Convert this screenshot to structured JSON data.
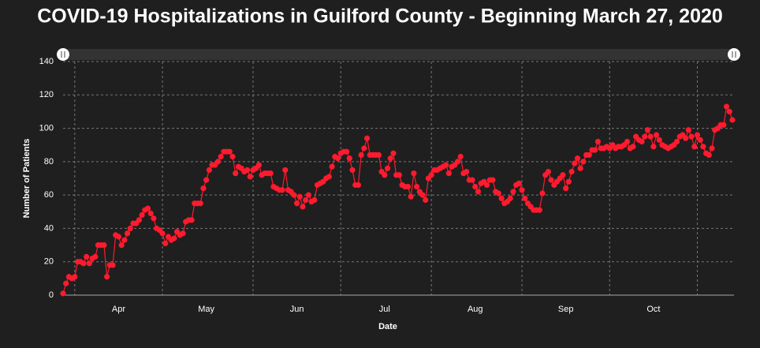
{
  "chart_data": {
    "type": "line",
    "title": "COVID-19 Hospitalizations in Guilford County - Beginning March 27, 2020",
    "xlabel": "Date",
    "ylabel": "Number of Patients",
    "categories": [
      null,
      null,
      null,
      null,
      null,
      null,
      null,
      null,
      null,
      null,
      null,
      null,
      null,
      null,
      null,
      null,
      null,
      null,
      null,
      "Apr",
      null,
      null,
      null,
      null,
      null,
      null,
      null,
      null,
      null,
      null,
      null,
      null,
      null,
      null,
      null,
      null,
      null,
      null,
      null,
      null,
      null,
      null,
      null,
      null,
      null,
      null,
      null,
      null,
      null,
      "May",
      null,
      null,
      null,
      null,
      null,
      null,
      null,
      null,
      null,
      null,
      null,
      null,
      null,
      null,
      null,
      null,
      null,
      null,
      null,
      null,
      null,
      null,
      null,
      null,
      null,
      null,
      null,
      null,
      null,
      null,
      "Jun",
      null,
      null,
      null,
      null,
      null,
      null,
      null,
      null,
      null,
      null,
      null,
      null,
      null,
      null,
      null,
      null,
      null,
      null,
      null,
      null,
      null,
      null,
      null,
      null,
      null,
      null,
      null,
      null,
      null,
      "Jul",
      null,
      null,
      null,
      null,
      null,
      null,
      null,
      null,
      null,
      null,
      null,
      null,
      null,
      null,
      null,
      null,
      null,
      null,
      null,
      null,
      null,
      null,
      null,
      null,
      null,
      null,
      null,
      null,
      null,
      null,
      "Aug",
      null,
      null,
      null,
      null,
      null,
      null,
      null,
      null,
      null,
      null,
      null,
      null,
      null,
      null,
      null,
      null,
      null,
      null,
      null,
      null,
      null,
      null,
      null,
      null,
      null,
      null,
      null,
      null,
      null,
      null,
      "Sep",
      null,
      null,
      null,
      null,
      null,
      null,
      null,
      null,
      null,
      null,
      null,
      null,
      null,
      null,
      null,
      null,
      null,
      null,
      null,
      null,
      null,
      null,
      null,
      null,
      null,
      null,
      null,
      null,
      null,
      "Oct",
      null,
      null,
      null,
      null,
      null,
      null,
      null,
      null,
      null,
      null,
      null,
      null,
      null,
      null,
      null,
      null,
      null,
      null,
      null,
      null,
      null,
      null,
      null,
      null,
      null,
      null,
      null
    ],
    "values": [
      1,
      7,
      11,
      10,
      11,
      20,
      20,
      19,
      23,
      19,
      22,
      23,
      30,
      30,
      30,
      11,
      18,
      18,
      36,
      35,
      30,
      33,
      37,
      40,
      43,
      43,
      45,
      48,
      51,
      52,
      49,
      46,
      40,
      39,
      37,
      31,
      35,
      33,
      34,
      38,
      36,
      37,
      44,
      45,
      45,
      55,
      55,
      55,
      64,
      69,
      75,
      78,
      78,
      80,
      83,
      86,
      86,
      86,
      83,
      73,
      77,
      76,
      74,
      75,
      71,
      75,
      76,
      78,
      72,
      73,
      73,
      73,
      65,
      64,
      63,
      63,
      75,
      63,
      62,
      60,
      55,
      59,
      53,
      57,
      60,
      56,
      57,
      66,
      67,
      68,
      70,
      71,
      77,
      83,
      82,
      85,
      86,
      86,
      82,
      75,
      66,
      66,
      84,
      88,
      94,
      84,
      84,
      84,
      84,
      74,
      72,
      76,
      82,
      85,
      72,
      72,
      66,
      65,
      65,
      59,
      73,
      65,
      62,
      60,
      57,
      70,
      72,
      75,
      75,
      76,
      77,
      78,
      73,
      77,
      78,
      80,
      83,
      73,
      74,
      69,
      69,
      65,
      62,
      67,
      68,
      66,
      69,
      69,
      62,
      61,
      58,
      55,
      56,
      58,
      62,
      66,
      67,
      63,
      58,
      55,
      53,
      51,
      51,
      51,
      61,
      72,
      74,
      69,
      66,
      68,
      70,
      72,
      64,
      68,
      74,
      79,
      82,
      76,
      80,
      84,
      84,
      87,
      87,
      92,
      88,
      88,
      89,
      88,
      90,
      88,
      89,
      89,
      90,
      92,
      88,
      89,
      95,
      93,
      92,
      95,
      99,
      95,
      89,
      96,
      93,
      90,
      89,
      88,
      89,
      90,
      92,
      95,
      96,
      94,
      99,
      95,
      89,
      96,
      93,
      89,
      85,
      84,
      88,
      99,
      100,
      102,
      102,
      113,
      110,
      105
    ],
    "color": "#ff1a2e",
    "ylim": [
      0,
      140
    ],
    "yticks": [
      0,
      20,
      40,
      60,
      80,
      100,
      120,
      140
    ],
    "grid": true
  }
}
